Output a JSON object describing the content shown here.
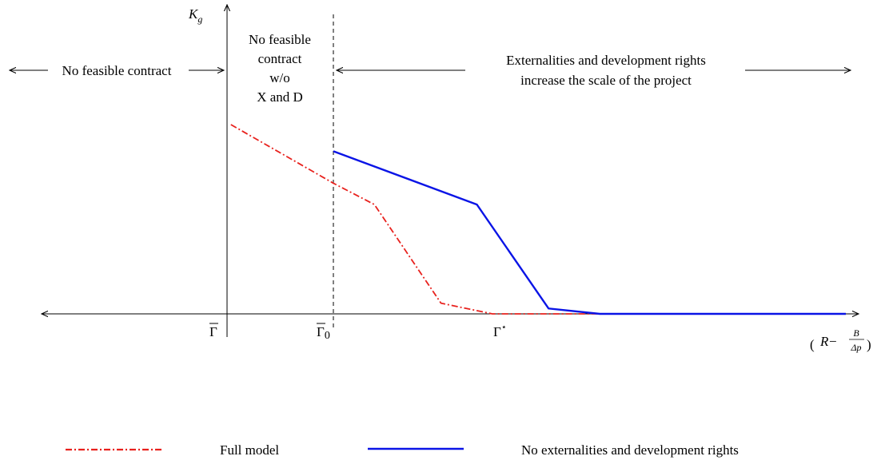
{
  "chart_data": {
    "type": "line",
    "y_axis_label": {
      "base": "K",
      "sub": "g"
    },
    "x_axis_label": {
      "open": "(",
      "var": "R",
      "minus": " − ",
      "num": "B",
      "den": "Δp",
      "close": ")"
    },
    "xlim": [
      -4.3,
      12.5
    ],
    "ylim": [
      -0.25,
      6
    ],
    "x_ticks": [
      {
        "x": 0,
        "base": "Γ",
        "overline": true,
        "sub": "",
        "sup": ""
      },
      {
        "x": 2,
        "base": "Γ",
        "overline": true,
        "sub": "0",
        "sup": ""
      },
      {
        "x": 5,
        "base": "Γ",
        "overline": false,
        "sub": "",
        "sup": "⋆"
      }
    ],
    "vertical_dashed_at": 2,
    "regions": [
      {
        "lines": [
          "No feasible contract"
        ],
        "arrow": "both"
      },
      {
        "lines": [
          "No feasible",
          "contract",
          "w/o",
          "X and D"
        ],
        "arrow": "none"
      },
      {
        "lines": [
          "Externalities and development rights",
          "increase the scale of the project"
        ],
        "arrow": "both"
      }
    ],
    "series": [
      {
        "name": "Full model",
        "color": "#e8211d",
        "style": "dash-dot",
        "x": [
          0,
          2,
          2.8,
          4.1,
          5.1,
          7.5,
          12
        ],
        "y": [
          3.55,
          2.45,
          2.05,
          0.2,
          0,
          0,
          0
        ]
      },
      {
        "name": "No externalities and development rights",
        "color": "#0a14e6",
        "style": "solid",
        "x": [
          2,
          4.8,
          6.2,
          7.2,
          12
        ],
        "y": [
          3.05,
          2.05,
          0.1,
          0,
          0
        ]
      }
    ]
  }
}
